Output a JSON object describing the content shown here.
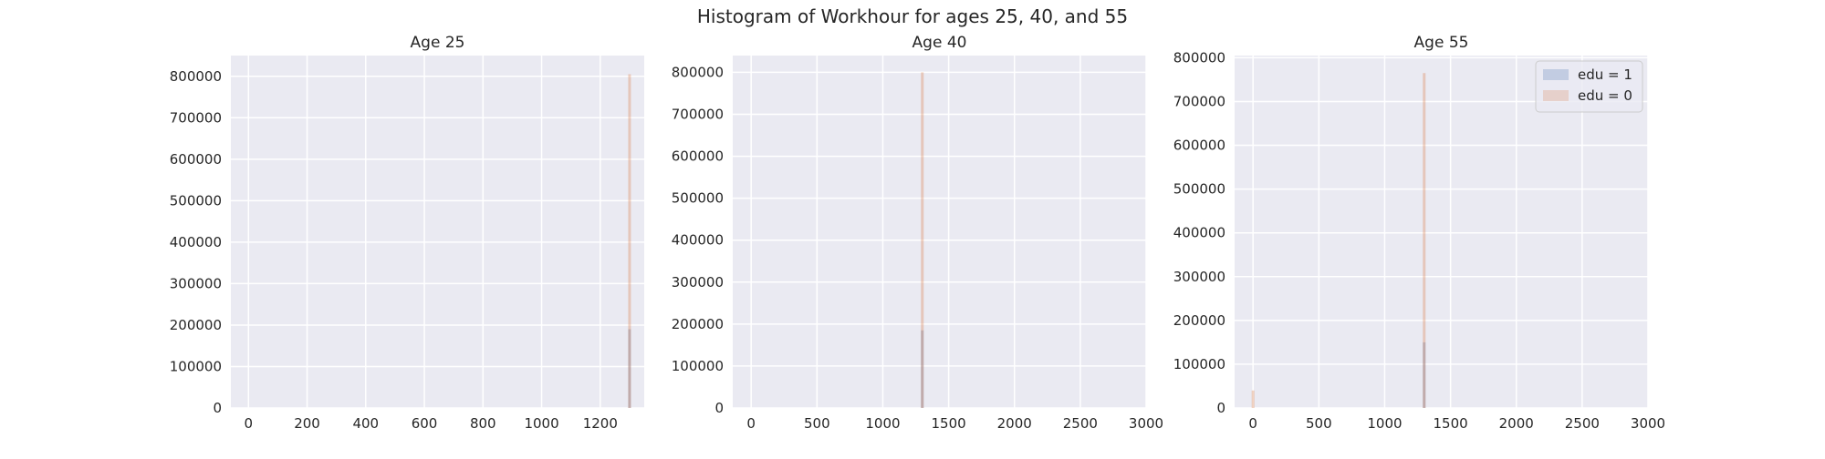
{
  "figure": {
    "title": "Histogram of Workhour for ages 25, 40, and 55"
  },
  "colors": {
    "background": "#EAEAF2",
    "grid": "#FFFFFF",
    "edu1": "#4C72B0",
    "edu0": "#DD8452",
    "text": "#262626"
  },
  "chart_data": [
    {
      "type": "bar",
      "title": "Age 25",
      "xlabel": "",
      "ylabel": "",
      "xlim": [
        -60,
        1350
      ],
      "ylim": [
        0,
        850000
      ],
      "xticks": [
        0,
        200,
        400,
        600,
        800,
        1000,
        1200
      ],
      "yticks": [
        0,
        100000,
        200000,
        300000,
        400000,
        500000,
        600000,
        700000,
        800000
      ],
      "grid": true,
      "legend": false,
      "series": [
        {
          "name": "edu = 1",
          "bins": [
            {
              "x": 1300,
              "count": 190000
            }
          ]
        },
        {
          "name": "edu = 0",
          "bins": [
            {
              "x": 1300,
              "count": 805000
            }
          ]
        }
      ]
    },
    {
      "type": "bar",
      "title": "Age 40",
      "xlabel": "",
      "ylabel": "",
      "xlim": [
        -140,
        3000
      ],
      "ylim": [
        0,
        840000
      ],
      "xticks": [
        0,
        500,
        1000,
        1500,
        2000,
        2500,
        3000
      ],
      "yticks": [
        0,
        100000,
        200000,
        300000,
        400000,
        500000,
        600000,
        700000,
        800000
      ],
      "grid": true,
      "legend": false,
      "series": [
        {
          "name": "edu = 1",
          "bins": [
            {
              "x": 1300,
              "count": 185000
            }
          ]
        },
        {
          "name": "edu = 0",
          "bins": [
            {
              "x": 1300,
              "count": 800000
            }
          ]
        }
      ]
    },
    {
      "type": "bar",
      "title": "Age 55",
      "xlabel": "",
      "ylabel": "",
      "xlim": [
        -140,
        3000
      ],
      "ylim": [
        0,
        805000
      ],
      "xticks": [
        0,
        500,
        1000,
        1500,
        2000,
        2500,
        3000
      ],
      "yticks": [
        0,
        100000,
        200000,
        300000,
        400000,
        500000,
        600000,
        700000,
        800000
      ],
      "grid": true,
      "legend": true,
      "legend_position": "top-right",
      "series": [
        {
          "name": "edu = 1",
          "bins": [
            {
              "x": 1300,
              "count": 150000
            }
          ]
        },
        {
          "name": "edu = 0",
          "bins": [
            {
              "x": 0,
              "count": 40000
            },
            {
              "x": 1300,
              "count": 765000
            }
          ]
        }
      ]
    }
  ]
}
